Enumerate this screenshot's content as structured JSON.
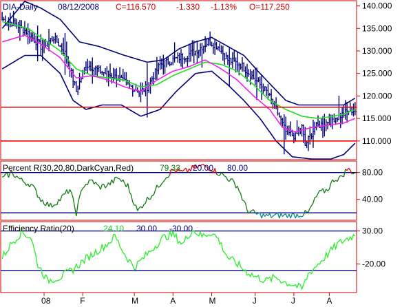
{
  "chart_data": [
    {
      "type": "ohlc",
      "panel": "price",
      "symbol_label": "DIA-Daily",
      "date_label": "08/12/2008",
      "close_label": "C=116.570",
      "change_label": "-1.330",
      "pct_label": "-1.13%",
      "open_label": "O=117.250",
      "ylim": [
        106,
        141
      ],
      "y_ticks": [
        110,
        115,
        120,
        125,
        130,
        135,
        140
      ],
      "y_tick_labels": [
        "110.000",
        "115.000",
        "120.000",
        "125.000",
        "130.000",
        "135.000",
        "140.000"
      ],
      "levels": [
        117.5,
        110.0
      ],
      "anchors": {
        "close": [
          [
            0,
            137
          ],
          [
            8,
            136
          ],
          [
            16,
            134
          ],
          [
            24,
            131
          ],
          [
            32,
            133
          ],
          [
            40,
            129
          ],
          [
            46,
            121
          ],
          [
            52,
            127
          ],
          [
            58,
            126
          ],
          [
            64,
            125
          ],
          [
            72,
            124
          ],
          [
            80,
            122
          ],
          [
            86,
            121
          ],
          [
            90,
            122
          ],
          [
            98,
            127
          ],
          [
            106,
            128
          ],
          [
            114,
            129
          ],
          [
            120,
            130
          ],
          [
            128,
            132
          ],
          [
            134,
            131
          ],
          [
            140,
            128
          ],
          [
            148,
            127
          ],
          [
            156,
            124
          ],
          [
            164,
            121
          ],
          [
            170,
            117
          ],
          [
            176,
            112
          ],
          [
            182,
            111
          ],
          [
            186,
            113
          ],
          [
            188,
            109
          ],
          [
            194,
            113
          ],
          [
            200,
            114
          ],
          [
            206,
            115
          ],
          [
            212,
            116
          ],
          [
            216,
            117
          ],
          [
            219,
            116.6
          ]
        ],
        "upper_band": [
          [
            0,
            135
          ],
          [
            14,
            141
          ],
          [
            24,
            139.5
          ],
          [
            36,
            137
          ],
          [
            48,
            132
          ],
          [
            60,
            131
          ],
          [
            76,
            129
          ],
          [
            90,
            127.5
          ],
          [
            100,
            128
          ],
          [
            110,
            130.5
          ],
          [
            120,
            132
          ],
          [
            130,
            133
          ],
          [
            140,
            131
          ],
          [
            150,
            129
          ],
          [
            160,
            125
          ],
          [
            168,
            122
          ],
          [
            176,
            119
          ],
          [
            184,
            118
          ],
          [
            196,
            118
          ],
          [
            212,
            118
          ],
          [
            219,
            119.5
          ]
        ],
        "lower_band": [
          [
            0,
            126
          ],
          [
            14,
            129
          ],
          [
            24,
            129
          ],
          [
            36,
            125
          ],
          [
            44,
            119
          ],
          [
            52,
            117
          ],
          [
            62,
            118
          ],
          [
            74,
            118
          ],
          [
            86,
            115.5
          ],
          [
            98,
            117
          ],
          [
            108,
            121
          ],
          [
            120,
            125
          ],
          [
            130,
            125.5
          ],
          [
            140,
            122.5
          ],
          [
            150,
            119
          ],
          [
            160,
            115
          ],
          [
            170,
            110
          ],
          [
            180,
            106.5
          ],
          [
            192,
            106
          ],
          [
            204,
            106
          ],
          [
            212,
            107
          ],
          [
            219,
            109.5
          ]
        ],
        "ma_green": [
          [
            0,
            136.5
          ],
          [
            16,
            135
          ],
          [
            26,
            132.5
          ],
          [
            36,
            130
          ],
          [
            46,
            126
          ],
          [
            56,
            124.5
          ],
          [
            66,
            124
          ],
          [
            76,
            123.5
          ],
          [
            86,
            122
          ],
          [
            96,
            122.5
          ],
          [
            106,
            124.5
          ],
          [
            116,
            126
          ],
          [
            126,
            127.5
          ],
          [
            136,
            127
          ],
          [
            146,
            125.5
          ],
          [
            156,
            122.5
          ],
          [
            166,
            119
          ],
          [
            176,
            117
          ],
          [
            186,
            115.5
          ],
          [
            196,
            115
          ],
          [
            206,
            115.5
          ],
          [
            212,
            116
          ],
          [
            219,
            117
          ]
        ],
        "ma_magenta": [
          [
            0,
            132
          ],
          [
            14,
            133.5
          ],
          [
            24,
            131.5
          ],
          [
            36,
            128.5
          ],
          [
            46,
            124
          ],
          [
            56,
            124.5
          ],
          [
            66,
            123.5
          ],
          [
            76,
            122
          ],
          [
            86,
            121
          ],
          [
            96,
            123.5
          ],
          [
            106,
            125.5
          ],
          [
            116,
            126.5
          ],
          [
            126,
            128
          ],
          [
            136,
            126
          ],
          [
            146,
            123.5
          ],
          [
            156,
            120
          ],
          [
            166,
            117
          ],
          [
            174,
            113
          ],
          [
            182,
            112
          ],
          [
            192,
            113
          ],
          [
            202,
            113.5
          ],
          [
            212,
            114
          ],
          [
            219,
            115
          ]
        ]
      }
    },
    {
      "type": "line",
      "panel": "percent_r",
      "title": "Percent R(30,20,80,DarkCyan,Red)",
      "value_label": "79.33",
      "lower_label": "20.00",
      "upper_label": "80.00",
      "ylim": [
        10,
        95
      ],
      "y_ticks": [
        40,
        80
      ],
      "y_tick_labels": [
        "40.00",
        "80.00"
      ],
      "levels": [
        80,
        20
      ],
      "anchors": [
        [
          0,
          70
        ],
        [
          6,
          80
        ],
        [
          12,
          68
        ],
        [
          18,
          62
        ],
        [
          24,
          40
        ],
        [
          30,
          30
        ],
        [
          36,
          40
        ],
        [
          42,
          55
        ],
        [
          46,
          20
        ],
        [
          50,
          60
        ],
        [
          56,
          68
        ],
        [
          60,
          58
        ],
        [
          66,
          62
        ],
        [
          72,
          72
        ],
        [
          78,
          60
        ],
        [
          84,
          22
        ],
        [
          88,
          35
        ],
        [
          94,
          50
        ],
        [
          100,
          70
        ],
        [
          106,
          84
        ],
        [
          112,
          80
        ],
        [
          118,
          86
        ],
        [
          124,
          90
        ],
        [
          128,
          88
        ],
        [
          134,
          80
        ],
        [
          140,
          72
        ],
        [
          146,
          60
        ],
        [
          152,
          24
        ],
        [
          158,
          18
        ],
        [
          164,
          15
        ],
        [
          172,
          16
        ],
        [
          180,
          16
        ],
        [
          186,
          18
        ],
        [
          190,
          20
        ],
        [
          196,
          48
        ],
        [
          202,
          55
        ],
        [
          206,
          70
        ],
        [
          210,
          72
        ],
        [
          214,
          85
        ],
        [
          219,
          79.33
        ]
      ]
    },
    {
      "type": "line",
      "panel": "efficiency_ratio",
      "title": "Efficiency Ratio(20)",
      "value_label": "24.10",
      "upper_label": "30.00",
      "lower_label": "-30.00",
      "ylim": [
        -62,
        42
      ],
      "y_ticks": [
        30,
        -20
      ],
      "y_tick_labels": [
        "30.00",
        "-20.00"
      ],
      "levels": [
        30,
        -30
      ],
      "anchors": [
        [
          0,
          -10
        ],
        [
          6,
          12
        ],
        [
          12,
          28
        ],
        [
          18,
          20
        ],
        [
          22,
          -20
        ],
        [
          28,
          -45
        ],
        [
          36,
          -40
        ],
        [
          44,
          -28
        ],
        [
          52,
          -12
        ],
        [
          58,
          -2
        ],
        [
          66,
          12
        ],
        [
          70,
          22
        ],
        [
          76,
          -5
        ],
        [
          82,
          -25
        ],
        [
          88,
          -10
        ],
        [
          94,
          5
        ],
        [
          100,
          20
        ],
        [
          106,
          25
        ],
        [
          112,
          10
        ],
        [
          118,
          32
        ],
        [
          124,
          22
        ],
        [
          130,
          28
        ],
        [
          134,
          18
        ],
        [
          140,
          -10
        ],
        [
          146,
          -20
        ],
        [
          152,
          -32
        ],
        [
          158,
          -40
        ],
        [
          164,
          -45
        ],
        [
          170,
          -40
        ],
        [
          176,
          -48
        ],
        [
          182,
          -52
        ],
        [
          186,
          -58
        ],
        [
          190,
          -35
        ],
        [
          196,
          -20
        ],
        [
          202,
          -5
        ],
        [
          208,
          10
        ],
        [
          214,
          18
        ],
        [
          219,
          24.1
        ]
      ]
    }
  ],
  "x_axis": {
    "n_bars": 220,
    "month_labels": [
      "08",
      "F",
      "M",
      "A",
      "M",
      "J",
      "J",
      "A"
    ],
    "month_positions": [
      26,
      50,
      82,
      106,
      130,
      157,
      181,
      203
    ]
  },
  "colors": {
    "border": "#cc0000",
    "price_bars": "#00007a",
    "upper_band": "#00007a",
    "ma_green": "#22dd22",
    "ma_magenta": "#ee22ee",
    "level_line": "#ee0000",
    "percent_r_high": "#dd0000",
    "percent_r_mid": "#117711",
    "percent_r_low": "#008b8b",
    "indicator_level": "#00007a",
    "efficiency": "#33ee33",
    "title_blue": "#000080",
    "title_red": "#cc0000"
  }
}
